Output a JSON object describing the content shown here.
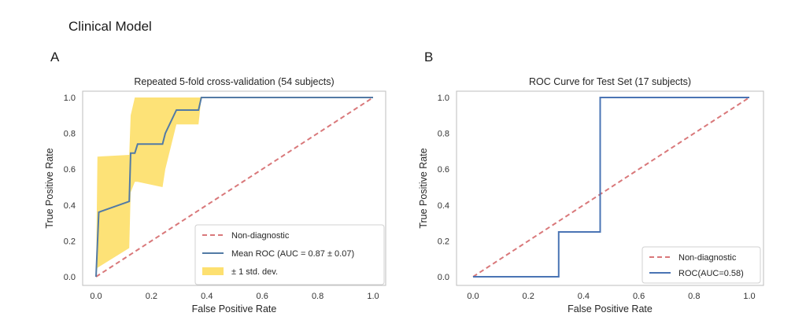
{
  "figure": {
    "title": "Clinical Model",
    "panels": [
      "A",
      "B"
    ]
  },
  "colors": {
    "diagonal": "#d9787a",
    "roc": "#4a74b4",
    "mean_roc": "#527aa5",
    "band": "#fde070",
    "axis": "#bdbdbd"
  },
  "chart_data": [
    {
      "type": "line",
      "title": "Repeated 5-fold cross-validation (54 subjects)",
      "xlabel": "False Positive Rate",
      "ylabel": "True Positive Rate",
      "xlim": [
        0,
        1
      ],
      "ylim": [
        0,
        1
      ],
      "xticks": [
        "0.0",
        "0.2",
        "0.4",
        "0.6",
        "0.8",
        "1.0"
      ],
      "yticks": [
        "0.0",
        "0.2",
        "0.4",
        "0.6",
        "0.8",
        "1.0"
      ],
      "grid": false,
      "legend_position": "lower-right",
      "series": [
        {
          "name": "Non-diagnostic",
          "style": "dashed",
          "x": [
            0,
            1
          ],
          "y": [
            0,
            1
          ]
        },
        {
          "name": "Mean ROC (AUC = 0.87 ± 0.07)",
          "style": "solid",
          "x": [
            0,
            0.01,
            0.12,
            0.125,
            0.14,
            0.15,
            0.24,
            0.25,
            0.29,
            0.37,
            0.38,
            1.0
          ],
          "y": [
            0,
            0.36,
            0.42,
            0.69,
            0.69,
            0.74,
            0.74,
            0.8,
            0.93,
            0.93,
            1.0,
            1.0
          ]
        },
        {
          "name": "± 1 std. dev.",
          "style": "band",
          "x": [
            0,
            0.005,
            0.12,
            0.125,
            0.14,
            0.15,
            0.24,
            0.25,
            0.29,
            0.37,
            0.38,
            1.0
          ],
          "upper": [
            0,
            0.67,
            0.68,
            0.9,
            1.0,
            1.0,
            1.0,
            1.0,
            1.0,
            1.0,
            1.0,
            1.0
          ],
          "lower": [
            0,
            0.05,
            0.16,
            0.47,
            0.53,
            0.53,
            0.5,
            0.6,
            0.85,
            0.85,
            1.0,
            1.0
          ]
        }
      ]
    },
    {
      "type": "line",
      "title": "ROC Curve for Test Set (17 subjects)",
      "xlabel": "False Positive Rate",
      "ylabel": "True Positive Rate",
      "xlim": [
        0,
        1
      ],
      "ylim": [
        0,
        1
      ],
      "xticks": [
        "0.0",
        "0.2",
        "0.4",
        "0.6",
        "0.8",
        "1.0"
      ],
      "yticks": [
        "0.0",
        "0.2",
        "0.4",
        "0.6",
        "0.8",
        "1.0"
      ],
      "grid": false,
      "legend_position": "lower-right",
      "series": [
        {
          "name": "Non-diagnostic",
          "style": "dashed",
          "x": [
            0,
            1
          ],
          "y": [
            0,
            1
          ]
        },
        {
          "name": "ROC(AUC=0.58)",
          "style": "solid",
          "x": [
            0,
            0.31,
            0.31,
            0.46,
            0.46,
            1.0
          ],
          "y": [
            0,
            0,
            0.25,
            0.25,
            1.0,
            1.0
          ]
        }
      ]
    }
  ]
}
